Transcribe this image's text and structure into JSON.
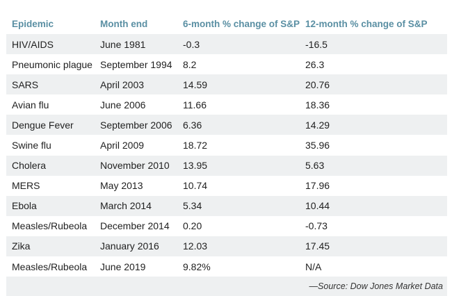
{
  "chart_data": {
    "type": "table",
    "columns": [
      "Epidemic",
      "Month end",
      "6-month % change of S&P",
      "12-month % change of S&P"
    ],
    "rows": [
      [
        "HIV/AIDS",
        "June 1981",
        "-0.3",
        "-16.5"
      ],
      [
        "Pneumonic plague",
        "September 1994",
        "8.2",
        "26.3"
      ],
      [
        "SARS",
        "April 2003",
        "14.59",
        "20.76"
      ],
      [
        "Avian flu",
        "June 2006",
        "11.66",
        "18.36"
      ],
      [
        "Dengue Fever",
        "September 2006",
        "6.36",
        "14.29"
      ],
      [
        "Swine flu",
        "April 2009",
        "18.72",
        "35.96"
      ],
      [
        "Cholera",
        "November 2010",
        "13.95",
        "5.63"
      ],
      [
        "MERS",
        "May 2013",
        "10.74",
        "17.96"
      ],
      [
        "Ebola",
        "March 2014",
        "5.34",
        "10.44"
      ],
      [
        "Measles/Rubeola",
        "December 2014",
        "0.20",
        "-0.73"
      ],
      [
        "Zika",
        "January 2016",
        "12.03",
        "17.45"
      ],
      [
        "Measles/Rubeola",
        "June 2019",
        "9.82%",
        "N/A"
      ]
    ],
    "source": "—Source: Dow Jones Market Data"
  },
  "colors": {
    "header_text": "#5a8fa3",
    "stripe": "#eef0f1",
    "body_text": "#1f1f1f"
  }
}
